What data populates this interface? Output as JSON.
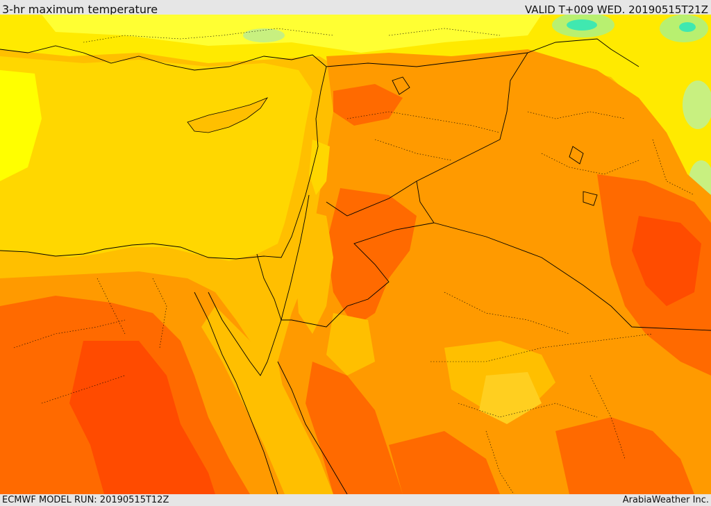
{
  "header": {
    "title": "3-hr maximum temperature",
    "valid": "VALID T+009 WED. 20190515T21Z"
  },
  "footer": {
    "model_run": "ECMWF MODEL RUN: 20190515T12Z",
    "credit": "ArabiaWeather Inc."
  },
  "colors": {
    "sea_yellow": "#ffd700",
    "light_yellow": "#ffff00",
    "yellow_orange": "#ffbf00",
    "orange": "#ff9a00",
    "dark_orange": "#ff6a00",
    "red_orange": "#ff4500",
    "light_green": "#b8f070",
    "cyan_green": "#40e8b0",
    "border_line": "#000000"
  }
}
